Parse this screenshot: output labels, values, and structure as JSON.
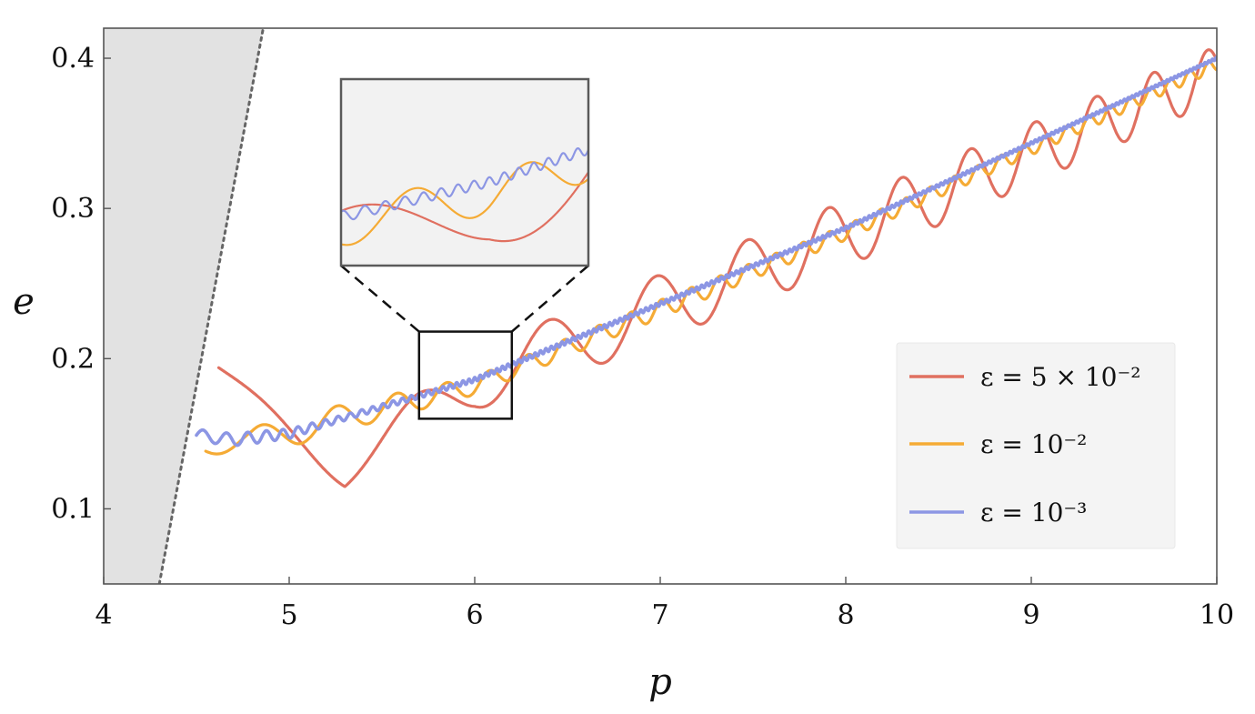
{
  "chart_data": {
    "type": "line",
    "xlabel": "p",
    "ylabel": "e",
    "xlim": [
      4,
      10
    ],
    "ylim": [
      0.05,
      0.42
    ],
    "xticks": [
      4,
      5,
      6,
      7,
      8,
      9,
      10
    ],
    "xtick_labels": [
      "4",
      "5",
      "6",
      "7",
      "8",
      "9",
      "10"
    ],
    "yticks": [
      0.1,
      0.2,
      0.3,
      0.4
    ],
    "ytick_labels": [
      "0.1",
      "0.2",
      "0.3",
      "0.4"
    ],
    "grid": false,
    "legend_position": "lower-right",
    "shaded_region": {
      "boundary": [
        [
          4.3,
          0.05
        ],
        [
          4.86,
          0.42
        ]
      ],
      "color": "#e2e2e2",
      "boundary_style": "dotted"
    },
    "series": [
      {
        "name": "ε = 5 × 10⁻²",
        "legend_label": "ε = 5 × 10⁻²",
        "color": "#e07060",
        "start": [
          4.62,
          0.193
        ],
        "trend": [
          [
            4.62,
            0.193
          ],
          [
            5.3,
            0.125
          ],
          [
            6,
            0.185
          ],
          [
            8,
            0.283
          ],
          [
            10,
            0.39
          ]
        ],
        "osc_amp": [
          [
            4.62,
            0.001
          ],
          [
            5.7,
            0.018
          ],
          [
            6.6,
            0.022
          ],
          [
            8,
            0.022
          ],
          [
            10,
            0.018
          ]
        ],
        "osc_period": [
          [
            4.62,
            1.2
          ],
          [
            6.0,
            0.72
          ],
          [
            7.0,
            0.52
          ],
          [
            8.0,
            0.4
          ],
          [
            10.0,
            0.28
          ]
        ],
        "osc_phase": 0.2
      },
      {
        "name": "ε = 10⁻²",
        "legend_label": "ε = 10⁻²",
        "color": "#f5ab35",
        "start": [
          4.55,
          0.15
        ],
        "trend": [
          [
            4.55,
            0.146
          ],
          [
            4.8,
            0.142
          ],
          [
            5.1,
            0.155
          ],
          [
            6,
            0.182
          ],
          [
            8,
            0.284
          ],
          [
            10,
            0.396
          ]
        ],
        "osc_amp": [
          [
            4.55,
            0.008
          ],
          [
            4.8,
            0.012
          ],
          [
            5.2,
            0.009
          ],
          [
            6,
            0.006
          ],
          [
            7,
            0.006
          ],
          [
            8,
            0.005
          ],
          [
            10,
            0.004
          ]
        ],
        "osc_period": [
          [
            4.55,
            0.6
          ],
          [
            5.2,
            0.36
          ],
          [
            6.0,
            0.22
          ],
          [
            7.0,
            0.16
          ],
          [
            10.0,
            0.1
          ]
        ],
        "osc_phase": 0.7
      },
      {
        "name": "ε = 10⁻³",
        "legend_label": "ε = 10⁻³",
        "color": "#8c96e4",
        "start": [
          4.5,
          0.149
        ],
        "trend": [
          [
            4.5,
            0.149
          ],
          [
            4.7,
            0.146
          ],
          [
            5,
            0.15
          ],
          [
            6,
            0.186
          ],
          [
            8,
            0.287
          ],
          [
            10,
            0.4
          ]
        ],
        "osc_amp": [
          [
            4.5,
            0.004
          ],
          [
            4.8,
            0.004
          ],
          [
            5.3,
            0.002
          ],
          [
            6,
            0.0015
          ],
          [
            10,
            0.0008
          ]
        ],
        "osc_period": [
          [
            4.5,
            0.14
          ],
          [
            5.0,
            0.08
          ],
          [
            6.0,
            0.03
          ],
          [
            10.0,
            0.02
          ]
        ],
        "osc_phase": 0.0
      }
    ],
    "zoom_box": {
      "x": [
        5.7,
        6.2
      ],
      "y": [
        0.16,
        0.218
      ]
    },
    "inset": {
      "xlim": [
        5.7,
        6.2
      ],
      "ylim": [
        0.16,
        0.218
      ],
      "background": "#f2f2f2"
    }
  },
  "legend": {
    "items": [
      {
        "label": "ε = 5 × 10⁻²",
        "color": "#e07060"
      },
      {
        "label": "ε = 10⁻²",
        "color": "#f5ab35"
      },
      {
        "label": "ε = 10⁻³",
        "color": "#8c96e4"
      }
    ]
  }
}
